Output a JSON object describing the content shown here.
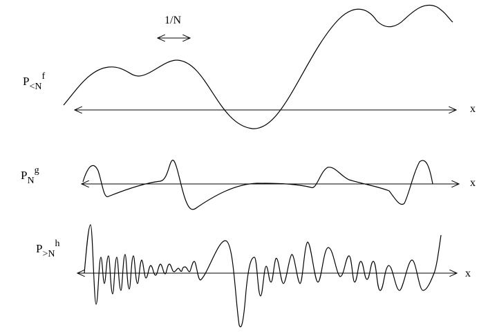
{
  "scale_label": "1/N",
  "panels": [
    {
      "id": "low",
      "op": "P",
      "sub": "<N",
      "fn": "f",
      "axis_label": "x"
    },
    {
      "id": "mid",
      "op": "P",
      "sub": "N",
      "fn": "g",
      "axis_label": "x"
    },
    {
      "id": "high",
      "op": "P",
      "sub": ">N",
      "fn": "h",
      "axis_label": "x"
    }
  ]
}
